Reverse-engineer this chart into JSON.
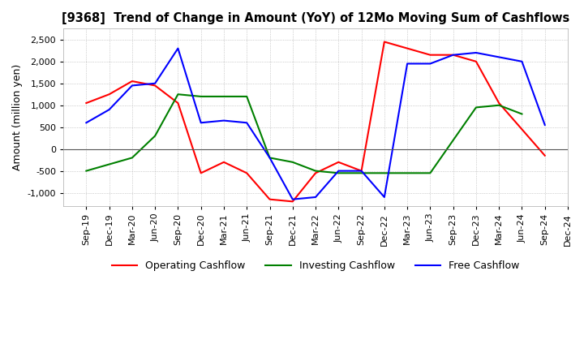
{
  "title": "[9368]  Trend of Change in Amount (YoY) of 12Mo Moving Sum of Cashflows",
  "ylabel": "Amount (million yen)",
  "x_labels": [
    "Sep-19",
    "Dec-19",
    "Mar-20",
    "Jun-20",
    "Sep-20",
    "Dec-20",
    "Mar-21",
    "Jun-21",
    "Sep-21",
    "Dec-21",
    "Mar-22",
    "Jun-22",
    "Sep-22",
    "Dec-22",
    "Mar-23",
    "Jun-23",
    "Sep-23",
    "Dec-23",
    "Mar-24",
    "Jun-24",
    "Sep-24",
    "Dec-24"
  ],
  "operating": [
    1050,
    1250,
    1550,
    1450,
    1050,
    -550,
    -300,
    -550,
    -1150,
    -1200,
    -550,
    -300,
    -500,
    2450,
    2300,
    2150,
    2150,
    2000,
    1050,
    450,
    -150,
    null
  ],
  "investing": [
    -500,
    -350,
    -200,
    300,
    1250,
    1200,
    1200,
    1200,
    -200,
    -300,
    -500,
    -550,
    -550,
    -550,
    -550,
    -550,
    200,
    950,
    1000,
    800,
    null,
    null
  ],
  "free": [
    600,
    900,
    1450,
    1500,
    2300,
    600,
    650,
    600,
    -200,
    -1150,
    -1100,
    -500,
    -500,
    -1100,
    1950,
    1950,
    2150,
    2200,
    2100,
    2000,
    550,
    null
  ],
  "operating_color": "#ff0000",
  "investing_color": "#008000",
  "free_color": "#0000ff",
  "ylim": [
    -1300,
    2750
  ],
  "yticks": [
    -1000,
    -500,
    0,
    500,
    1000,
    1500,
    2000,
    2500
  ],
  "bg_color": "#ffffff",
  "grid_color": "#aaaaaa",
  "title_fontsize": 10.5,
  "tick_fontsize": 8,
  "ylabel_fontsize": 9
}
